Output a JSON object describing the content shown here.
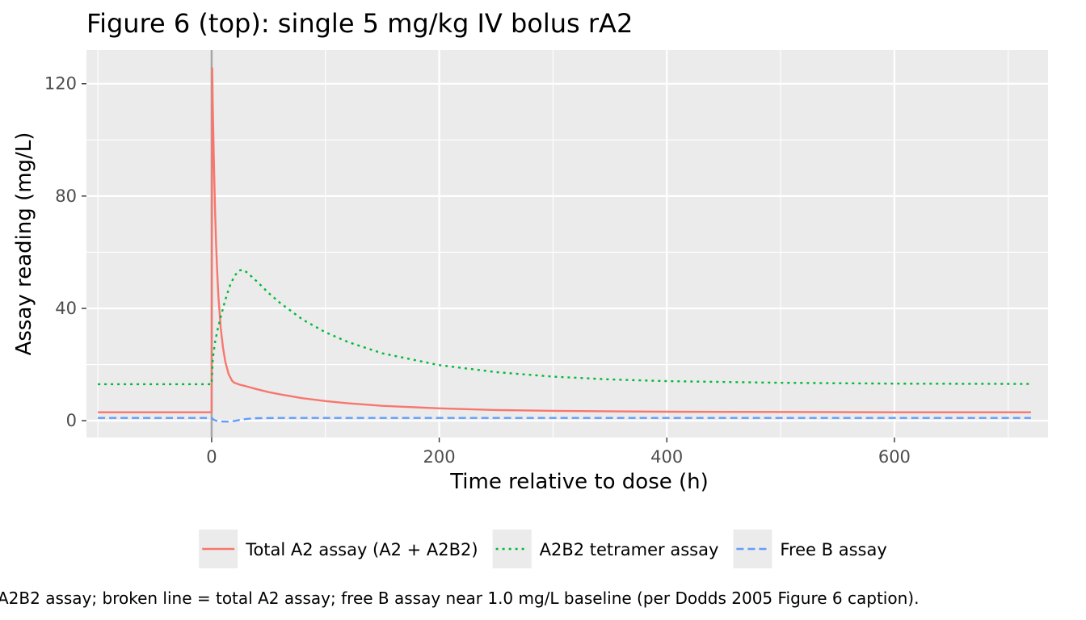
{
  "chart_data": {
    "type": "line",
    "title": "Figure 6 (top): single 5 mg/kg IV bolus rA2",
    "xlabel": "Time relative to dose (h)",
    "ylabel": "Assay reading (mg/L)",
    "xlim": [
      -110,
      735
    ],
    "ylim": [
      -6,
      132
    ],
    "x_ticks": [
      0,
      200,
      400,
      600
    ],
    "x_tick_labels": [
      "0",
      "200",
      "400",
      "600"
    ],
    "y_ticks": [
      0,
      40,
      80,
      120
    ],
    "y_tick_labels": [
      "0",
      "40",
      "80",
      "120"
    ],
    "grid": true,
    "legend_position": "bottom",
    "reference_line_x": 0,
    "caption": "A2B2 assay; broken line = total A2 assay; free B assay near 1.0 mg/L baseline (per Dodds 2005 Figure 6 caption).",
    "series": [
      {
        "name": "Total A2 assay (A2 + A2B2)",
        "color": "#f8766d",
        "dash": "solid",
        "x": [
          -100,
          -1,
          0,
          0.5,
          1,
          2,
          3,
          4,
          5,
          6,
          8,
          10,
          12,
          15,
          18,
          20,
          25,
          30,
          40,
          50,
          60,
          80,
          100,
          120,
          150,
          200,
          250,
          300,
          400,
          500,
          600,
          720
        ],
        "y": [
          3,
          3,
          3,
          125.5,
          112,
          92,
          75,
          62,
          52,
          44,
          33,
          26,
          21,
          16.5,
          14.2,
          13.5,
          12.8,
          12.3,
          11.2,
          10.2,
          9.4,
          8.0,
          7.0,
          6.2,
          5.3,
          4.4,
          3.8,
          3.5,
          3.2,
          3.1,
          3.0,
          3.0
        ]
      },
      {
        "name": "A2B2 tetramer assay",
        "color": "#00ba38",
        "dash": "dotted",
        "x": [
          -100,
          -1,
          0,
          1,
          3,
          5,
          8,
          12,
          16,
          20,
          24,
          28,
          32,
          40,
          50,
          60,
          80,
          100,
          120,
          150,
          200,
          250,
          300,
          350,
          400,
          500,
          600,
          720
        ],
        "y": [
          13,
          13,
          13,
          22,
          28,
          32,
          37,
          43,
          48,
          51.5,
          53.5,
          53.7,
          52.5,
          49.5,
          45.5,
          42,
          36,
          31.5,
          28,
          24,
          19.8,
          17.3,
          15.7,
          14.7,
          14.1,
          13.5,
          13.2,
          13.1
        ]
      },
      {
        "name": "Free B assay",
        "color": "#619cff",
        "dash": "dashed",
        "x": [
          -100,
          -1,
          0,
          2,
          5,
          10,
          15,
          20,
          25,
          30,
          35,
          40,
          50,
          60,
          80,
          100,
          150,
          200,
          300,
          400,
          500,
          600,
          720
        ],
        "y": [
          1.0,
          1.0,
          1.0,
          0.3,
          -0.1,
          -0.3,
          -0.3,
          -0.1,
          0.3,
          0.6,
          0.8,
          0.9,
          0.95,
          1.0,
          1.0,
          1.0,
          1.0,
          1.0,
          1.0,
          1.0,
          1.0,
          1.0,
          1.0
        ]
      }
    ]
  }
}
